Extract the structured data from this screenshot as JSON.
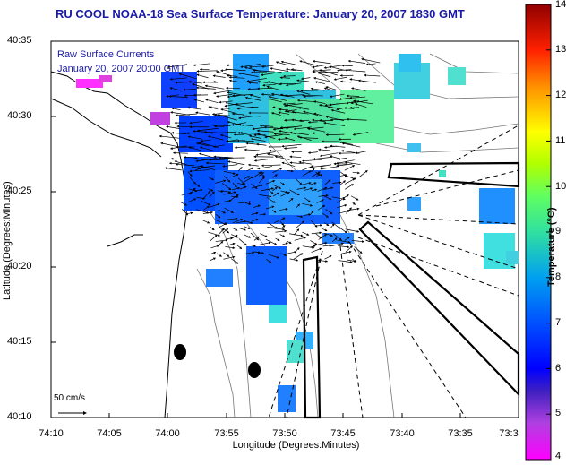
{
  "title": "RU COOL  NOAA-18  Sea Surface Temperature:  January 20, 2007 1830 GMT",
  "legend": {
    "raw": "Raw Surface Currents",
    "date": "January 20, 2007 20:00 GMT"
  },
  "scale": {
    "label": "50 cm/s"
  },
  "axes": {
    "xlabel": "Longitude (Degrees:Minutes)",
    "ylabel": "Latitude (Degrees:Minutes)",
    "xticks": [
      "74:10",
      "74:05",
      "74:00",
      "73:55",
      "73:50",
      "73:45",
      "73:40",
      "73:35",
      "73:3"
    ],
    "yticks": [
      "40:35",
      "40:30",
      "40:25",
      "40:20",
      "40:15",
      "40:10"
    ]
  },
  "colorbar": {
    "title": "Temperature (°C)",
    "ticks": [
      "14",
      "13",
      "12",
      "11",
      "10",
      "9",
      "8",
      "7",
      "6",
      "5",
      "4"
    ],
    "min": 4,
    "max": 14
  },
  "chart_data": {
    "type": "heatmap",
    "title": "RU COOL  NOAA-18  Sea Surface Temperature:  January 20, 2007 1830 GMT",
    "xlabel": "Longitude (Degrees:Minutes)",
    "ylabel": "Latitude (Degrees:Minutes)",
    "xlim": [
      "74:10",
      "73:30"
    ],
    "ylim": [
      "40:10",
      "40:35"
    ],
    "colorbar_range": [
      4,
      14
    ],
    "colorbar_label": "Temperature (°C)"
  }
}
